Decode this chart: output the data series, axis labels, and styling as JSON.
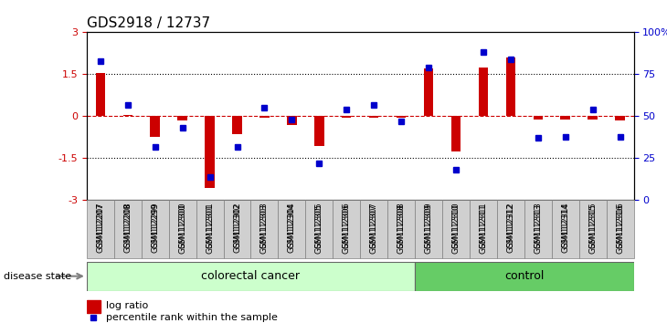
{
  "title": "GDS2918 / 12737",
  "samples": [
    "GSM112207",
    "GSM112208",
    "GSM112299",
    "GSM112300",
    "GSM112301",
    "GSM112302",
    "GSM112303",
    "GSM112304",
    "GSM112305",
    "GSM112306",
    "GSM112307",
    "GSM112308",
    "GSM112309",
    "GSM112310",
    "GSM112311",
    "GSM112312",
    "GSM112313",
    "GSM112314",
    "GSM112315",
    "GSM112316"
  ],
  "log_ratio": [
    1.55,
    0.05,
    -0.75,
    -0.15,
    -2.55,
    -0.65,
    -0.05,
    -0.3,
    -1.05,
    -0.05,
    -0.05,
    -0.05,
    1.7,
    -1.25,
    1.75,
    2.1,
    -0.1,
    -0.1,
    -0.1,
    -0.15
  ],
  "percentile_rank": [
    83,
    57,
    32,
    43,
    14,
    32,
    55,
    48,
    22,
    54,
    57,
    47,
    79,
    18,
    88,
    84,
    37,
    38,
    54,
    38
  ],
  "colorectal_count": 12,
  "bar_color": "#cc0000",
  "dot_color": "#0000cc",
  "group_colors": [
    "#ccffcc",
    "#66cc66"
  ],
  "group_labels": [
    "colorectal cancer",
    "control"
  ],
  "ylim": [
    -3,
    3
  ],
  "yticks": [
    -3,
    -1.5,
    0,
    1.5,
    3
  ],
  "y_right_ticks": [
    0,
    25,
    50,
    75,
    100
  ],
  "y_right_labels": [
    "0",
    "25",
    "50",
    "75",
    "100%"
  ],
  "hline_y": 0,
  "dotted_lines": [
    -1.5,
    1.5
  ],
  "legend_items": [
    "log ratio",
    "percentile rank within the sample"
  ],
  "legend_colors": [
    "#cc0000",
    "#0000cc"
  ],
  "xlabel_fontsize": 7,
  "title_fontsize": 11
}
